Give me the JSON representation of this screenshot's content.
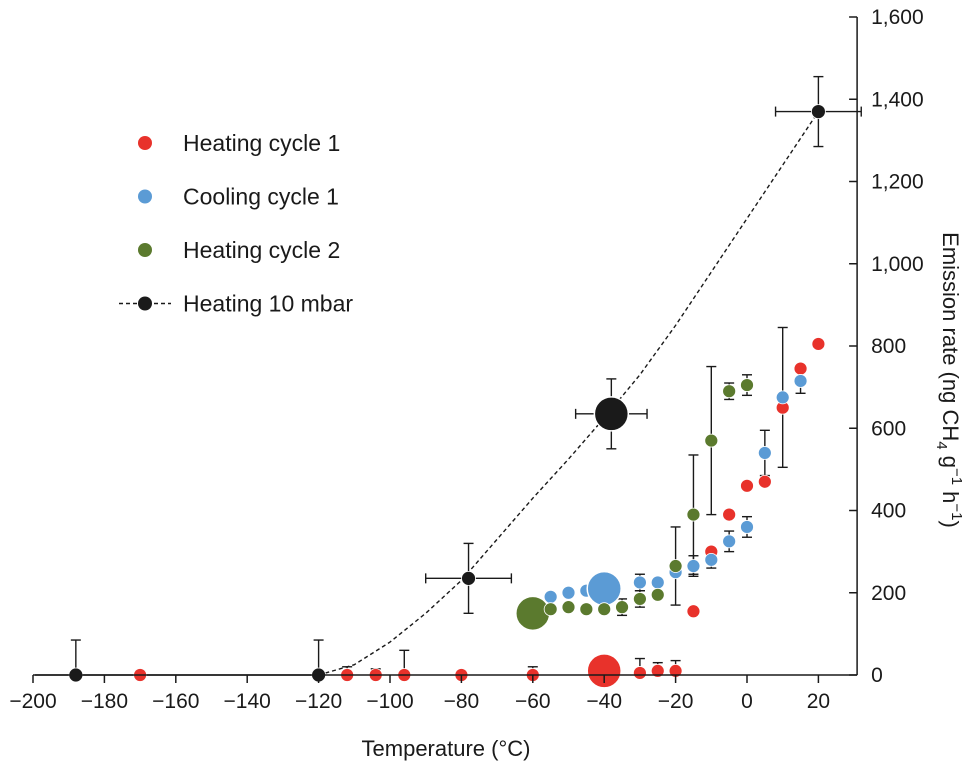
{
  "chart_data": {
    "type": "scatter",
    "xlabel": "Temperature  (°C)",
    "ylabel": "Emission rate (ng CH",
    "ylabel_sub": "4",
    "ylabel_g": " g",
    "ylabel_sup1": "−1",
    "ylabel_h": " h",
    "ylabel_sup2": "−1",
    "ylabel_close": ")",
    "xlim": [
      -200,
      30
    ],
    "ylim": [
      0,
      1600
    ],
    "x_ticks": [
      -200,
      -180,
      -160,
      -140,
      -120,
      -100,
      -80,
      -60,
      -40,
      -20,
      0,
      20
    ],
    "x_tick_labels": [
      "−200",
      "−180",
      "−160",
      "−140",
      "−120",
      "−100",
      "−80",
      "−60",
      "−40",
      "−20",
      "0",
      "20"
    ],
    "y_ticks": [
      0,
      200,
      400,
      600,
      800,
      1000,
      1200,
      1400,
      1600
    ],
    "y_tick_labels": [
      "0",
      "200",
      "400",
      "600",
      "800",
      "1,000",
      "1,200",
      "1,400",
      "1,600"
    ],
    "y_axis_position": "right",
    "grid": false,
    "legend_position": "top-left",
    "series": [
      {
        "name": "Heating cycle 1",
        "color": "#e8322b",
        "marker": "circle",
        "points": [
          {
            "x": -170,
            "y": 0,
            "err": 10
          },
          {
            "x": -112,
            "y": 0,
            "err": 20
          },
          {
            "x": -104,
            "y": 0,
            "err": 15
          },
          {
            "x": -96,
            "y": 0,
            "err": 60
          },
          {
            "x": -80,
            "y": 0,
            "err": 10
          },
          {
            "x": -60,
            "y": 0,
            "err": 20
          },
          {
            "x": -40,
            "y": 10,
            "big": true
          },
          {
            "x": -30,
            "y": 5,
            "err": 35
          },
          {
            "x": -25,
            "y": 10,
            "err": 20
          },
          {
            "x": -20,
            "y": 10,
            "err": 25
          },
          {
            "x": -15,
            "y": 155
          },
          {
            "x": -10,
            "y": 300
          },
          {
            "x": -5,
            "y": 390
          },
          {
            "x": 0,
            "y": 460
          },
          {
            "x": 5,
            "y": 470
          },
          {
            "x": 10,
            "y": 650
          },
          {
            "x": 15,
            "y": 745
          },
          {
            "x": 20,
            "y": 805
          }
        ]
      },
      {
        "name": "Cooling cycle 1",
        "color": "#5b9bd5",
        "marker": "circle",
        "points": [
          {
            "x": -55,
            "y": 190
          },
          {
            "x": -50,
            "y": 200
          },
          {
            "x": -45,
            "y": 205
          },
          {
            "x": -40,
            "y": 210,
            "big": true
          },
          {
            "x": -30,
            "y": 225,
            "err": 20
          },
          {
            "x": -25,
            "y": 225
          },
          {
            "x": -20,
            "y": 250
          },
          {
            "x": -15,
            "y": 265,
            "err": 25
          },
          {
            "x": -10,
            "y": 280,
            "err": 20
          },
          {
            "x": -5,
            "y": 325,
            "err": 25
          },
          {
            "x": 0,
            "y": 360,
            "err": 25
          },
          {
            "x": 5,
            "y": 540,
            "err": 55
          },
          {
            "x": 10,
            "y": 675,
            "err": 170
          },
          {
            "x": 15,
            "y": 715,
            "err": 30
          }
        ]
      },
      {
        "name": "Heating cycle 2",
        "color": "#5b7a2e",
        "marker": "circle",
        "points": [
          {
            "x": -60,
            "y": 150,
            "big": true
          },
          {
            "x": -55,
            "y": 160
          },
          {
            "x": -50,
            "y": 165
          },
          {
            "x": -45,
            "y": 160
          },
          {
            "x": -40,
            "y": 160
          },
          {
            "x": -35,
            "y": 165,
            "err": 20
          },
          {
            "x": -30,
            "y": 185,
            "err": 20
          },
          {
            "x": -25,
            "y": 195
          },
          {
            "x": -20,
            "y": 265,
            "err": 95
          },
          {
            "x": -15,
            "y": 390,
            "err": 145
          },
          {
            "x": -10,
            "y": 570,
            "err": 180
          },
          {
            "x": -5,
            "y": 690,
            "err": 20
          },
          {
            "x": 0,
            "y": 705,
            "err": 25
          }
        ]
      },
      {
        "name": "Heating 10 mbar",
        "color": "#1a1a1a",
        "marker": "circle",
        "line": "dashed",
        "points": [
          {
            "x": -188,
            "y": 0,
            "err": 85
          },
          {
            "x": -120,
            "y": 0,
            "err": 85
          },
          {
            "x": -78,
            "y": 235,
            "err": 85,
            "xerr": 12
          },
          {
            "x": -38,
            "y": 635,
            "big": true,
            "err": 85,
            "xerr": 10
          },
          {
            "x": 20,
            "y": 1370,
            "err": 85,
            "xerr": 12
          }
        ],
        "curve": [
          {
            "x": -120,
            "y": 0
          },
          {
            "x": -110,
            "y": 25
          },
          {
            "x": -100,
            "y": 80
          },
          {
            "x": -90,
            "y": 150
          },
          {
            "x": -80,
            "y": 230
          },
          {
            "x": -70,
            "y": 330
          },
          {
            "x": -60,
            "y": 430
          },
          {
            "x": -50,
            "y": 525
          },
          {
            "x": -40,
            "y": 625
          },
          {
            "x": -30,
            "y": 730
          },
          {
            "x": -20,
            "y": 850
          },
          {
            "x": -10,
            "y": 980
          },
          {
            "x": 0,
            "y": 1110
          },
          {
            "x": 10,
            "y": 1240
          },
          {
            "x": 20,
            "y": 1370
          }
        ]
      }
    ]
  }
}
